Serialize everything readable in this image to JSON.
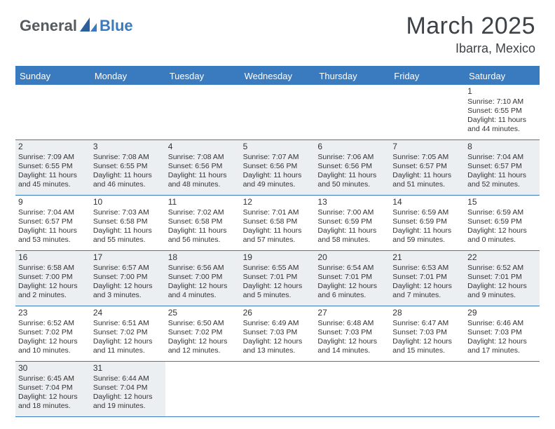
{
  "logo": {
    "part1": "General",
    "part2": "Blue"
  },
  "title": "March 2025",
  "location": "Ibarra, Mexico",
  "colors": {
    "accent": "#3a7bbf",
    "shaded_bg": "#eceff1",
    "text_dark": "#3d4247",
    "cell_text": "#333333"
  },
  "weekdays": [
    "Sunday",
    "Monday",
    "Tuesday",
    "Wednesday",
    "Thursday",
    "Friday",
    "Saturday"
  ],
  "weeks": [
    [
      {
        "empty": true
      },
      {
        "empty": true
      },
      {
        "empty": true
      },
      {
        "empty": true
      },
      {
        "empty": true
      },
      {
        "empty": true
      },
      {
        "day": "1",
        "shaded": false,
        "sunrise": "Sunrise: 7:10 AM",
        "sunset": "Sunset: 6:55 PM",
        "daylight1": "Daylight: 11 hours",
        "daylight2": "and 44 minutes."
      }
    ],
    [
      {
        "day": "2",
        "shaded": true,
        "sunrise": "Sunrise: 7:09 AM",
        "sunset": "Sunset: 6:55 PM",
        "daylight1": "Daylight: 11 hours",
        "daylight2": "and 45 minutes."
      },
      {
        "day": "3",
        "shaded": true,
        "sunrise": "Sunrise: 7:08 AM",
        "sunset": "Sunset: 6:55 PM",
        "daylight1": "Daylight: 11 hours",
        "daylight2": "and 46 minutes."
      },
      {
        "day": "4",
        "shaded": true,
        "sunrise": "Sunrise: 7:08 AM",
        "sunset": "Sunset: 6:56 PM",
        "daylight1": "Daylight: 11 hours",
        "daylight2": "and 48 minutes."
      },
      {
        "day": "5",
        "shaded": true,
        "sunrise": "Sunrise: 7:07 AM",
        "sunset": "Sunset: 6:56 PM",
        "daylight1": "Daylight: 11 hours",
        "daylight2": "and 49 minutes."
      },
      {
        "day": "6",
        "shaded": true,
        "sunrise": "Sunrise: 7:06 AM",
        "sunset": "Sunset: 6:56 PM",
        "daylight1": "Daylight: 11 hours",
        "daylight2": "and 50 minutes."
      },
      {
        "day": "7",
        "shaded": true,
        "sunrise": "Sunrise: 7:05 AM",
        "sunset": "Sunset: 6:57 PM",
        "daylight1": "Daylight: 11 hours",
        "daylight2": "and 51 minutes."
      },
      {
        "day": "8",
        "shaded": true,
        "sunrise": "Sunrise: 7:04 AM",
        "sunset": "Sunset: 6:57 PM",
        "daylight1": "Daylight: 11 hours",
        "daylight2": "and 52 minutes."
      }
    ],
    [
      {
        "day": "9",
        "shaded": false,
        "sunrise": "Sunrise: 7:04 AM",
        "sunset": "Sunset: 6:57 PM",
        "daylight1": "Daylight: 11 hours",
        "daylight2": "and 53 minutes."
      },
      {
        "day": "10",
        "shaded": false,
        "sunrise": "Sunrise: 7:03 AM",
        "sunset": "Sunset: 6:58 PM",
        "daylight1": "Daylight: 11 hours",
        "daylight2": "and 55 minutes."
      },
      {
        "day": "11",
        "shaded": false,
        "sunrise": "Sunrise: 7:02 AM",
        "sunset": "Sunset: 6:58 PM",
        "daylight1": "Daylight: 11 hours",
        "daylight2": "and 56 minutes."
      },
      {
        "day": "12",
        "shaded": false,
        "sunrise": "Sunrise: 7:01 AM",
        "sunset": "Sunset: 6:58 PM",
        "daylight1": "Daylight: 11 hours",
        "daylight2": "and 57 minutes."
      },
      {
        "day": "13",
        "shaded": false,
        "sunrise": "Sunrise: 7:00 AM",
        "sunset": "Sunset: 6:59 PM",
        "daylight1": "Daylight: 11 hours",
        "daylight2": "and 58 minutes."
      },
      {
        "day": "14",
        "shaded": false,
        "sunrise": "Sunrise: 6:59 AM",
        "sunset": "Sunset: 6:59 PM",
        "daylight1": "Daylight: 11 hours",
        "daylight2": "and 59 minutes."
      },
      {
        "day": "15",
        "shaded": false,
        "sunrise": "Sunrise: 6:59 AM",
        "sunset": "Sunset: 6:59 PM",
        "daylight1": "Daylight: 12 hours",
        "daylight2": "and 0 minutes."
      }
    ],
    [
      {
        "day": "16",
        "shaded": true,
        "sunrise": "Sunrise: 6:58 AM",
        "sunset": "Sunset: 7:00 PM",
        "daylight1": "Daylight: 12 hours",
        "daylight2": "and 2 minutes."
      },
      {
        "day": "17",
        "shaded": true,
        "sunrise": "Sunrise: 6:57 AM",
        "sunset": "Sunset: 7:00 PM",
        "daylight1": "Daylight: 12 hours",
        "daylight2": "and 3 minutes."
      },
      {
        "day": "18",
        "shaded": true,
        "sunrise": "Sunrise: 6:56 AM",
        "sunset": "Sunset: 7:00 PM",
        "daylight1": "Daylight: 12 hours",
        "daylight2": "and 4 minutes."
      },
      {
        "day": "19",
        "shaded": true,
        "sunrise": "Sunrise: 6:55 AM",
        "sunset": "Sunset: 7:01 PM",
        "daylight1": "Daylight: 12 hours",
        "daylight2": "and 5 minutes."
      },
      {
        "day": "20",
        "shaded": true,
        "sunrise": "Sunrise: 6:54 AM",
        "sunset": "Sunset: 7:01 PM",
        "daylight1": "Daylight: 12 hours",
        "daylight2": "and 6 minutes."
      },
      {
        "day": "21",
        "shaded": true,
        "sunrise": "Sunrise: 6:53 AM",
        "sunset": "Sunset: 7:01 PM",
        "daylight1": "Daylight: 12 hours",
        "daylight2": "and 7 minutes."
      },
      {
        "day": "22",
        "shaded": true,
        "sunrise": "Sunrise: 6:52 AM",
        "sunset": "Sunset: 7:01 PM",
        "daylight1": "Daylight: 12 hours",
        "daylight2": "and 9 minutes."
      }
    ],
    [
      {
        "day": "23",
        "shaded": false,
        "sunrise": "Sunrise: 6:52 AM",
        "sunset": "Sunset: 7:02 PM",
        "daylight1": "Daylight: 12 hours",
        "daylight2": "and 10 minutes."
      },
      {
        "day": "24",
        "shaded": false,
        "sunrise": "Sunrise: 6:51 AM",
        "sunset": "Sunset: 7:02 PM",
        "daylight1": "Daylight: 12 hours",
        "daylight2": "and 11 minutes."
      },
      {
        "day": "25",
        "shaded": false,
        "sunrise": "Sunrise: 6:50 AM",
        "sunset": "Sunset: 7:02 PM",
        "daylight1": "Daylight: 12 hours",
        "daylight2": "and 12 minutes."
      },
      {
        "day": "26",
        "shaded": false,
        "sunrise": "Sunrise: 6:49 AM",
        "sunset": "Sunset: 7:03 PM",
        "daylight1": "Daylight: 12 hours",
        "daylight2": "and 13 minutes."
      },
      {
        "day": "27",
        "shaded": false,
        "sunrise": "Sunrise: 6:48 AM",
        "sunset": "Sunset: 7:03 PM",
        "daylight1": "Daylight: 12 hours",
        "daylight2": "and 14 minutes."
      },
      {
        "day": "28",
        "shaded": false,
        "sunrise": "Sunrise: 6:47 AM",
        "sunset": "Sunset: 7:03 PM",
        "daylight1": "Daylight: 12 hours",
        "daylight2": "and 15 minutes."
      },
      {
        "day": "29",
        "shaded": false,
        "sunrise": "Sunrise: 6:46 AM",
        "sunset": "Sunset: 7:03 PM",
        "daylight1": "Daylight: 12 hours",
        "daylight2": "and 17 minutes."
      }
    ],
    [
      {
        "day": "30",
        "shaded": true,
        "sunrise": "Sunrise: 6:45 AM",
        "sunset": "Sunset: 7:04 PM",
        "daylight1": "Daylight: 12 hours",
        "daylight2": "and 18 minutes."
      },
      {
        "day": "31",
        "shaded": true,
        "sunrise": "Sunrise: 6:44 AM",
        "sunset": "Sunset: 7:04 PM",
        "daylight1": "Daylight: 12 hours",
        "daylight2": "and 19 minutes."
      },
      {
        "empty": true
      },
      {
        "empty": true
      },
      {
        "empty": true
      },
      {
        "empty": true
      },
      {
        "empty": true
      }
    ]
  ]
}
